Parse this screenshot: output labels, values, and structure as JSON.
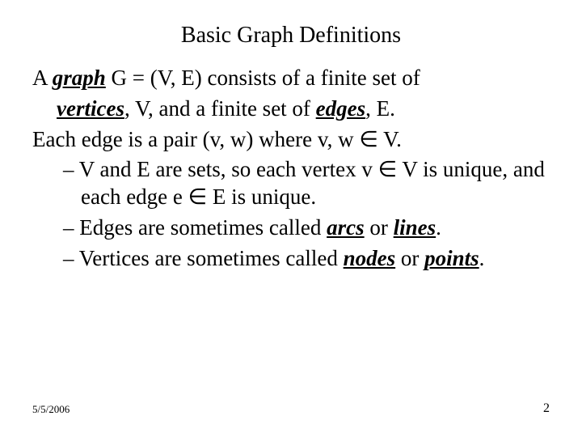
{
  "title": "Basic Graph Definitions",
  "line1_pre": "A ",
  "term_graph": "graph",
  "line1_post": " G = (V, E) consists of a finite set of ",
  "term_vertices": "vertices",
  "line2_mid": ", V, and a finite set of ",
  "term_edges": "edges",
  "line2_end": ", E.",
  "line3": "Each edge is a pair (v, w) where v, w ∈ V.",
  "sub1": "– V and E are sets, so each vertex v ∈ V is unique, and each edge e ∈ E is unique.",
  "sub2_pre": "– Edges are sometimes called ",
  "term_arcs": "arcs",
  "sub2_mid": " or ",
  "term_lines": "lines",
  "sub2_end": ".",
  "sub3_pre": "– Vertices are sometimes called ",
  "term_nodes": "nodes",
  "sub3_mid": " or ",
  "term_points": "points",
  "sub3_end": ".",
  "footer_date": "5/5/2006",
  "footer_page": "2"
}
